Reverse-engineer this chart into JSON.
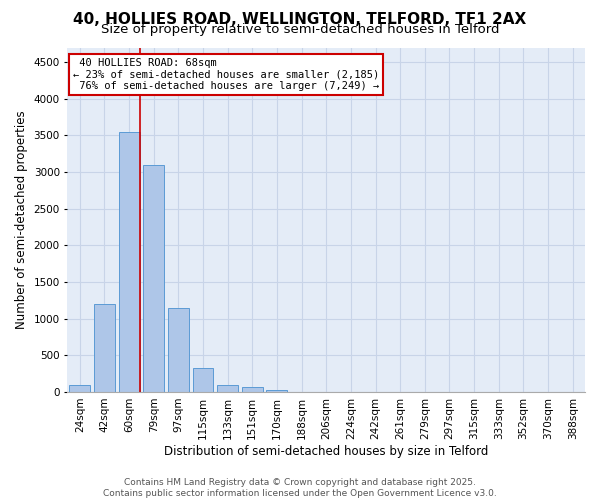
{
  "title_line1": "40, HOLLIES ROAD, WELLINGTON, TELFORD, TF1 2AX",
  "title_line2": "Size of property relative to semi-detached houses in Telford",
  "xlabel": "Distribution of semi-detached houses by size in Telford",
  "ylabel": "Number of semi-detached properties",
  "categories": [
    "24sqm",
    "42sqm",
    "60sqm",
    "79sqm",
    "97sqm",
    "115sqm",
    "133sqm",
    "151sqm",
    "170sqm",
    "188sqm",
    "206sqm",
    "224sqm",
    "242sqm",
    "261sqm",
    "279sqm",
    "297sqm",
    "315sqm",
    "333sqm",
    "352sqm",
    "370sqm",
    "388sqm"
  ],
  "values": [
    100,
    1200,
    3550,
    3100,
    1150,
    330,
    100,
    65,
    30,
    5,
    2,
    0,
    0,
    0,
    0,
    0,
    0,
    0,
    0,
    0,
    0
  ],
  "bar_color": "#aec6e8",
  "bar_edge_color": "#5b9bd5",
  "grid_color": "#c8d4e8",
  "background_color": "#e4ecf7",
  "property_label": "40 HOLLIES ROAD: 68sqm",
  "pct_smaller": 23,
  "pct_larger": 76,
  "n_smaller": 2185,
  "n_larger": 7249,
  "annotation_box_color": "#cc0000",
  "vline_color": "#cc0000",
  "vline_x": 2.45,
  "ylim": [
    0,
    4700
  ],
  "yticks": [
    0,
    500,
    1000,
    1500,
    2000,
    2500,
    3000,
    3500,
    4000,
    4500
  ],
  "footer_line1": "Contains HM Land Registry data © Crown copyright and database right 2025.",
  "footer_line2": "Contains public sector information licensed under the Open Government Licence v3.0.",
  "title_fontsize": 11,
  "subtitle_fontsize": 9.5,
  "axis_label_fontsize": 8.5,
  "tick_fontsize": 7.5,
  "footer_fontsize": 6.5,
  "annotation_fontsize": 7.5
}
